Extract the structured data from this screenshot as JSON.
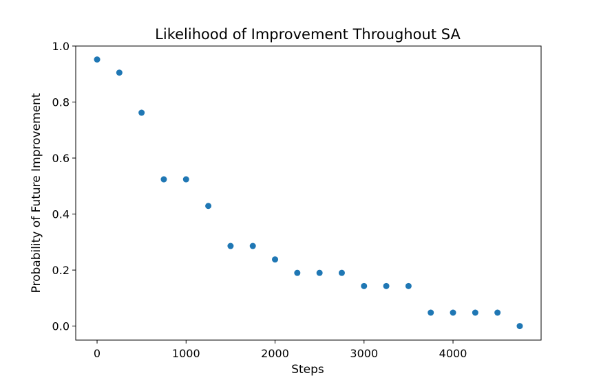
{
  "chart_data": {
    "type": "scatter",
    "title": "Likelihood of Improvement Throughout SA",
    "xlabel": "Steps",
    "ylabel": "Probability of Future Improvement",
    "xlim": [
      -240,
      4990
    ],
    "ylim": [
      -0.05,
      1.0
    ],
    "xticks": [
      0,
      1000,
      2000,
      3000,
      4000
    ],
    "xtick_labels": [
      "0",
      "1000",
      "2000",
      "3000",
      "4000"
    ],
    "yticks": [
      0.0,
      0.2,
      0.4,
      0.6,
      0.8,
      1.0
    ],
    "ytick_labels": [
      "0.0",
      "0.2",
      "0.4",
      "0.6",
      "0.8",
      "1.0"
    ],
    "grid": false,
    "color": "#1f77b4",
    "x": [
      0,
      250,
      500,
      750,
      1000,
      1250,
      1500,
      1750,
      2000,
      2250,
      2500,
      2750,
      3000,
      3250,
      3500,
      3750,
      4000,
      4250,
      4500,
      4750
    ],
    "y": [
      0.952,
      0.905,
      0.762,
      0.524,
      0.524,
      0.429,
      0.286,
      0.286,
      0.238,
      0.19,
      0.19,
      0.19,
      0.143,
      0.143,
      0.143,
      0.048,
      0.048,
      0.048,
      0.048,
      0.0
    ]
  }
}
